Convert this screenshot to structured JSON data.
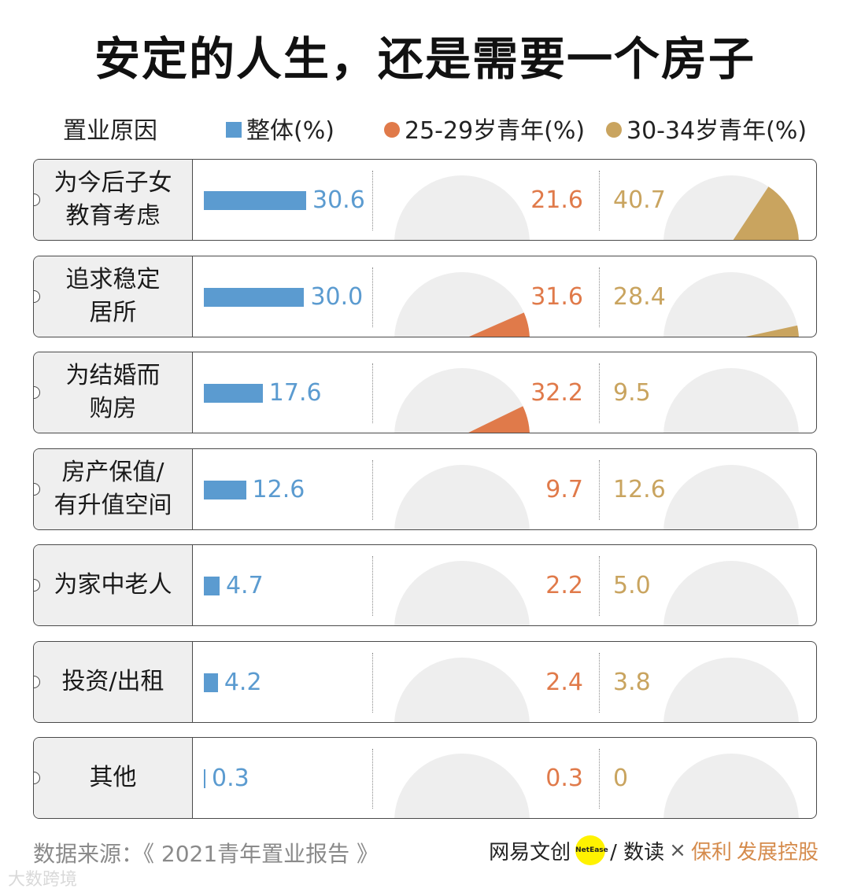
{
  "title": "安定的人生，还是需要一个房子",
  "legend": {
    "category_header": "置业原因",
    "overall": "整体(%)",
    "age_25_29": "25-29岁青年(%)",
    "age_30_34": "30-34岁青年(%)"
  },
  "colors": {
    "overall": "#5b9bd0",
    "age_25_29": "#e07a4a",
    "age_30_34": "#c9a45f",
    "pie_bg": "#eeeeee"
  },
  "chart_data": {
    "type": "bar",
    "categories": [
      "为今后子女教育考虑",
      "追求稳定居所",
      "为结婚而购房",
      "房产保值/有升值空间",
      "为家中老人",
      "投资/出租",
      "其他"
    ],
    "series": [
      {
        "name": "整体(%)",
        "values": [
          30.6,
          30.0,
          17.6,
          12.6,
          4.7,
          4.2,
          0.3
        ]
      },
      {
        "name": "25-29岁青年(%)",
        "values": [
          21.6,
          31.6,
          32.2,
          9.7,
          2.2,
          2.4,
          0.3
        ]
      },
      {
        "name": "30-34岁青年(%)",
        "values": [
          40.7,
          28.4,
          9.5,
          12.6,
          5.0,
          3.8,
          0
        ]
      }
    ],
    "title": "安定的人生，还是需要一个房子",
    "xlabel": "",
    "ylabel": "%",
    "ylim": [
      0,
      100
    ]
  },
  "rows": [
    {
      "label_line1": "为今后子女",
      "label_line2": "教育考虑",
      "overall": "30.6",
      "young": "21.6",
      "mid": "40.7"
    },
    {
      "label_line1": "追求稳定",
      "label_line2": "居所",
      "overall": "30.0",
      "young": "31.6",
      "mid": "28.4"
    },
    {
      "label_line1": "为结婚而",
      "label_line2": "购房",
      "overall": "17.6",
      "young": "32.2",
      "mid": "9.5"
    },
    {
      "label_line1": "房产保值/",
      "label_line2": "有升值空间",
      "overall": "12.6",
      "young": "9.7",
      "mid": "12.6"
    },
    {
      "label_line1": "为家中老人",
      "label_line2": "",
      "overall": "4.7",
      "young": "2.2",
      "mid": "5.0"
    },
    {
      "label_line1": "投资/出租",
      "label_line2": "",
      "overall": "4.2",
      "young": "2.4",
      "mid": "3.8"
    },
    {
      "label_line1": "其他",
      "label_line2": "",
      "overall": "0.3",
      "young": "0.3",
      "mid": "0"
    }
  ],
  "footer": {
    "source": "数据来源：《 2021青年置业报告 》",
    "logo_netease": "网易文创",
    "logo_circle_text": "NetEase",
    "logo_shudu": "/ 数读",
    "logo_times": "×",
    "logo_poly": "保利",
    "logo_poly_suffix": "发展控股",
    "watermark": "大数跨境"
  }
}
